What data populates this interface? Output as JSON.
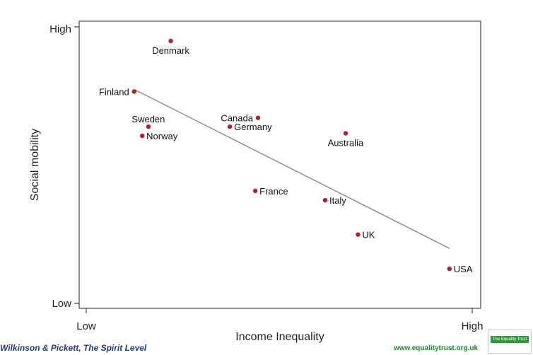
{
  "chart_data": {
    "type": "scatter",
    "xlabel": "Income Inequality",
    "ylabel": "Social mobility",
    "x_tick_labels": [
      "Low",
      "High"
    ],
    "y_tick_labels": [
      "Low",
      "High"
    ],
    "xlim": [
      0,
      1
    ],
    "ylim": [
      0,
      1
    ],
    "grid": false,
    "point_color": "#b0202a",
    "trend_color": "#8a8a8a",
    "points": [
      {
        "label": "Denmark",
        "x": 0.219,
        "y": 0.949,
        "label_pos": "below"
      },
      {
        "label": "Finland",
        "x": 0.124,
        "y": 0.766,
        "label_pos": "left"
      },
      {
        "label": "Sweden",
        "x": 0.161,
        "y": 0.639,
        "label_pos": "above"
      },
      {
        "label": "Norway",
        "x": 0.145,
        "y": 0.606,
        "label_pos": "right"
      },
      {
        "label": "Canada",
        "x": 0.445,
        "y": 0.671,
        "label_pos": "left"
      },
      {
        "label": "Germany",
        "x": 0.372,
        "y": 0.639,
        "label_pos": "right"
      },
      {
        "label": "Australia",
        "x": 0.672,
        "y": 0.615,
        "label_pos": "below"
      },
      {
        "label": "France",
        "x": 0.438,
        "y": 0.407,
        "label_pos": "right"
      },
      {
        "label": "Italy",
        "x": 0.619,
        "y": 0.373,
        "label_pos": "right"
      },
      {
        "label": "UK",
        "x": 0.704,
        "y": 0.249,
        "label_pos": "right"
      },
      {
        "label": "USA",
        "x": 0.941,
        "y": 0.125,
        "label_pos": "right"
      }
    ],
    "trend_line": [
      {
        "x": 0.124,
        "y": 0.774
      },
      {
        "x": 0.941,
        "y": 0.199
      }
    ]
  },
  "footer": {
    "credit": "Wilkinson & Pickett, The Spirit Level",
    "website": "www.equalitytrust.org.uk",
    "logo_text": "The Equality Trust"
  }
}
